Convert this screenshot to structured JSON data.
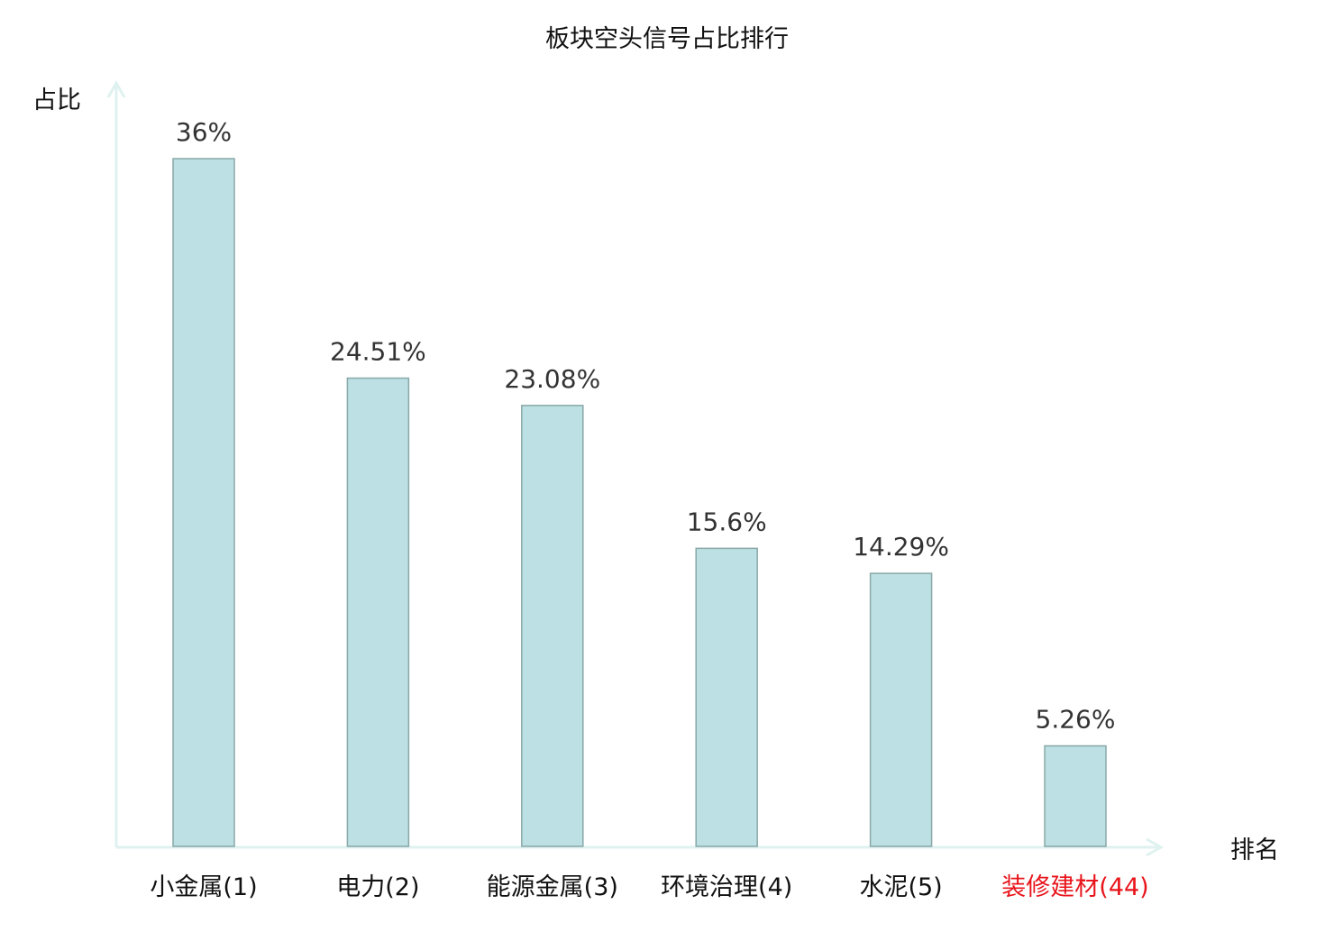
{
  "chart_data": {
    "type": "bar",
    "title": "板块空头信号占比排行",
    "ylabel": "占比",
    "xlabel": "排名",
    "categories": [
      "小金属(1)",
      "电力(2)",
      "能源金属(3)",
      "环境治理(4)",
      "水泥(5)",
      "装修建材(44)"
    ],
    "values": [
      36,
      24.51,
      23.08,
      15.6,
      14.29,
      5.26
    ],
    "data_labels": [
      "36%",
      "24.51%",
      "23.08%",
      "15.6%",
      "14.29%",
      "5.26%"
    ],
    "highlighted_category": "装修建材(44)",
    "grid": false,
    "colors": {
      "bar_fill": "#bce0e3",
      "bar_stroke": "#8aa8a8",
      "axis": "#dff2f0",
      "label": "#333333",
      "highlight": "#e8141b"
    }
  }
}
